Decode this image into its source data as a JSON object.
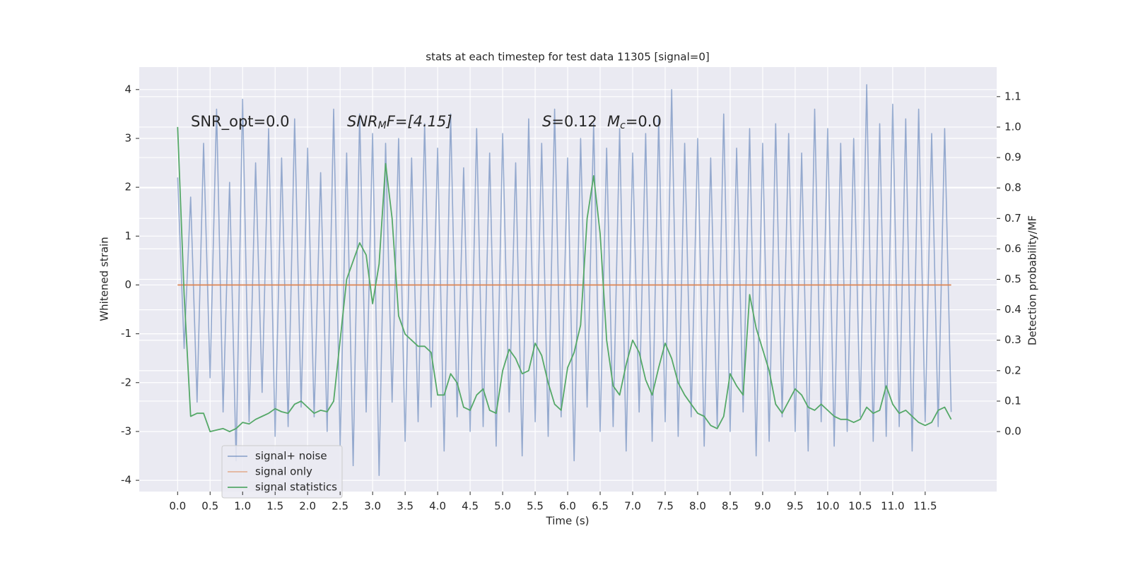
{
  "chart_data": {
    "type": "line",
    "title": "stats at each timestep for test data 11305 [signal=0]",
    "x_label": "Time (s)",
    "y_label": "Whitened strain",
    "y2_label": "Detection probability/MF",
    "annotations": [
      [
        "SNR_opt=0.0"
      ],
      [
        "SNR",
        "M",
        "F=[4.15]"
      ],
      [
        "S",
        "=0.12"
      ],
      [
        "M",
        "c",
        "=0.0"
      ]
    ],
    "x": [
      0.0,
      0.1,
      0.2,
      0.3,
      0.4,
      0.5,
      0.6,
      0.7,
      0.8,
      0.9,
      1.0,
      1.1,
      1.2,
      1.3,
      1.4,
      1.5,
      1.6,
      1.7,
      1.8,
      1.9,
      2.0,
      2.1,
      2.2,
      2.3,
      2.4,
      2.5,
      2.6,
      2.7,
      2.8,
      2.9,
      3.0,
      3.1,
      3.2,
      3.3,
      3.4,
      3.5,
      3.6,
      3.7,
      3.8,
      3.9,
      4.0,
      4.1,
      4.2,
      4.3,
      4.4,
      4.5,
      4.6,
      4.7,
      4.8,
      4.9,
      5.0,
      5.1,
      5.2,
      5.3,
      5.4,
      5.5,
      5.6,
      5.7,
      5.8,
      5.9,
      6.0,
      6.1,
      6.2,
      6.3,
      6.4,
      6.5,
      6.6,
      6.7,
      6.8,
      6.9,
      7.0,
      7.1,
      7.2,
      7.3,
      7.4,
      7.5,
      7.6,
      7.7,
      7.8,
      7.9,
      8.0,
      8.1,
      8.2,
      8.3,
      8.4,
      8.5,
      8.6,
      8.7,
      8.8,
      8.9,
      9.0,
      9.1,
      9.2,
      9.3,
      9.4,
      9.5,
      9.6,
      9.7,
      9.8,
      9.9,
      10.0,
      10.1,
      10.2,
      10.3,
      10.4,
      10.5,
      10.6,
      10.7,
      10.8,
      10.9,
      11.0,
      11.1,
      11.2,
      11.3,
      11.4,
      11.5,
      11.6,
      11.7,
      11.8,
      11.9
    ],
    "series": [
      {
        "name": "signal+ noise",
        "color": "#4c72b0",
        "axis": "y",
        "values": [
          2.2,
          -1.3,
          1.8,
          -2.4,
          2.9,
          -1.9,
          3.6,
          -2.6,
          2.1,
          -3.6,
          3.8,
          -2.8,
          2.5,
          -2.2,
          3.2,
          -3.1,
          2.6,
          -2.9,
          3.4,
          -2.5,
          2.8,
          -2.7,
          2.3,
          -3.0,
          3.6,
          -3.3,
          2.7,
          -3.7,
          3.5,
          -2.6,
          3.1,
          -3.9,
          2.9,
          -2.4,
          3.0,
          -3.2,
          2.6,
          -2.8,
          3.3,
          -2.5,
          2.8,
          -3.4,
          3.5,
          -2.7,
          2.4,
          -3.0,
          3.2,
          -2.9,
          2.7,
          -3.3,
          3.1,
          -2.6,
          2.5,
          -3.5,
          3.4,
          -2.8,
          2.9,
          -3.1,
          3.6,
          -2.7,
          2.6,
          -3.6,
          3.0,
          -2.5,
          3.3,
          -3.0,
          2.8,
          -2.9,
          3.2,
          -3.4,
          2.7,
          -2.6,
          3.1,
          -3.2,
          3.4,
          -2.8,
          4.0,
          -3.1,
          2.9,
          -2.7,
          3.0,
          -3.3,
          2.6,
          -2.9,
          3.5,
          -3.0,
          2.8,
          -2.6,
          3.2,
          -3.5,
          2.9,
          -3.2,
          3.3,
          -2.7,
          3.1,
          -3.0,
          2.7,
          -3.4,
          3.6,
          -2.8,
          3.2,
          -3.3,
          2.9,
          -3.0,
          3.0,
          -2.7,
          4.1,
          -3.2,
          3.3,
          -3.1,
          3.7,
          -2.9,
          3.4,
          -3.4,
          3.6,
          -2.8,
          3.1,
          -2.9,
          3.2,
          -2.6
        ]
      },
      {
        "name": "signal only",
        "color": "#dd8452",
        "axis": "y",
        "x": [
          0.0,
          11.9
        ],
        "values": [
          0,
          0
        ]
      },
      {
        "name": "signal statistics",
        "color": "#55a868",
        "axis": "y2",
        "values": [
          1.0,
          0.45,
          0.05,
          0.06,
          0.06,
          0.0,
          0.005,
          0.01,
          0.0,
          0.01,
          0.03,
          0.025,
          0.04,
          0.05,
          0.06,
          0.075,
          0.065,
          0.06,
          0.09,
          0.1,
          0.08,
          0.06,
          0.07,
          0.065,
          0.1,
          0.3,
          0.5,
          0.56,
          0.62,
          0.58,
          0.42,
          0.55,
          0.88,
          0.7,
          0.38,
          0.32,
          0.3,
          0.28,
          0.28,
          0.26,
          0.12,
          0.12,
          0.19,
          0.16,
          0.08,
          0.07,
          0.12,
          0.14,
          0.07,
          0.06,
          0.2,
          0.27,
          0.24,
          0.19,
          0.2,
          0.29,
          0.25,
          0.16,
          0.09,
          0.07,
          0.21,
          0.26,
          0.35,
          0.7,
          0.84,
          0.65,
          0.3,
          0.15,
          0.12,
          0.22,
          0.3,
          0.26,
          0.17,
          0.12,
          0.21,
          0.29,
          0.24,
          0.16,
          0.12,
          0.09,
          0.06,
          0.05,
          0.02,
          0.01,
          0.05,
          0.19,
          0.15,
          0.12,
          0.45,
          0.34,
          0.27,
          0.2,
          0.09,
          0.06,
          0.1,
          0.14,
          0.12,
          0.08,
          0.07,
          0.09,
          0.07,
          0.05,
          0.04,
          0.04,
          0.03,
          0.04,
          0.08,
          0.06,
          0.07,
          0.15,
          0.09,
          0.06,
          0.07,
          0.05,
          0.03,
          0.02,
          0.03,
          0.07,
          0.08,
          0.04
        ]
      }
    ],
    "xlim": [
      -0.59,
      12.6
    ],
    "ylim": [
      -4.23,
      4.46
    ],
    "y2lim": [
      -0.197,
      1.197
    ],
    "xticks": [
      {
        "value": 0,
        "label": "0.0"
      },
      0.5,
      {
        "value": 1,
        "label": "1.0"
      },
      1.5,
      {
        "value": 2,
        "label": "2.0"
      },
      2.5,
      {
        "value": 3,
        "label": "3.0"
      },
      3.5,
      {
        "value": 4,
        "label": "4.0"
      },
      4.5,
      {
        "value": 5,
        "label": "5.0"
      },
      5.5,
      {
        "value": 6,
        "label": "6.0"
      },
      6.5,
      {
        "value": 7,
        "label": "7.0"
      },
      7.5,
      {
        "value": 8,
        "label": "8.0"
      },
      8.5,
      {
        "value": 9,
        "label": "9.0"
      },
      9.5,
      {
        "value": 10,
        "label": "10.0"
      },
      10.5,
      {
        "value": 11,
        "label": "11.0"
      },
      11.5
    ],
    "yticks": [
      -4,
      -3,
      -2,
      -1,
      0,
      1,
      2,
      3,
      4
    ],
    "y2ticks": [
      {
        "value": 0,
        "label": "0.0"
      },
      0.1,
      0.2,
      0.3,
      0.4,
      0.5,
      0.6,
      0.7,
      0.8,
      0.9,
      {
        "value": 1,
        "label": "1.0"
      },
      1.1
    ],
    "grid": true,
    "legend": "lower left"
  }
}
